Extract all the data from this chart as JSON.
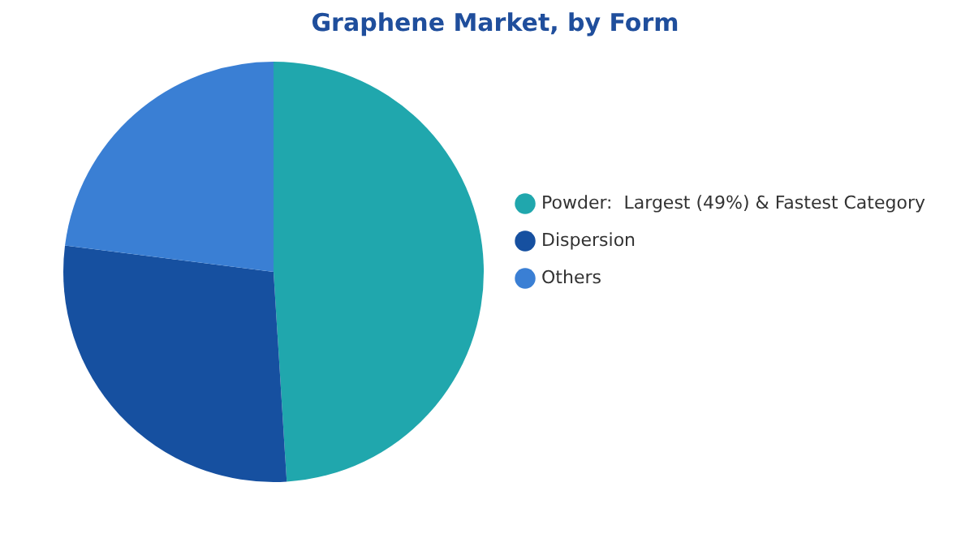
{
  "chart_data": {
    "type": "pie",
    "title": "Graphene Market, by Form",
    "categories": [
      "Powder:  Largest (49%) & Fastest Category",
      "Dispersion",
      "Others"
    ],
    "values": [
      49,
      28,
      23
    ],
    "colors": [
      "#20a7ad",
      "#1650a0",
      "#3a7fd4"
    ],
    "legend": "right"
  }
}
